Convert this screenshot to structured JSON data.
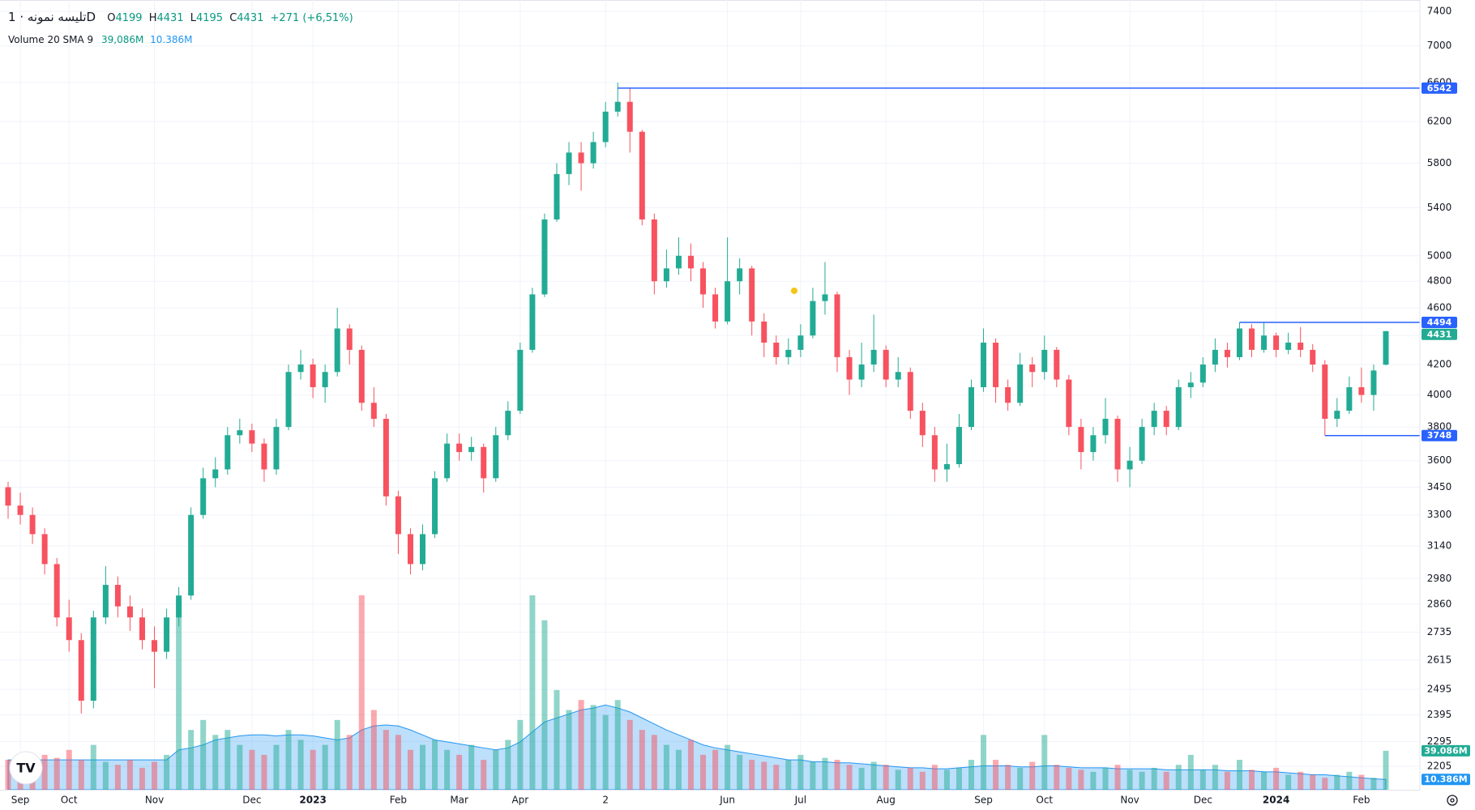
{
  "header": {
    "symbol": "تلیسه نمونه · 1D",
    "ohlc_letters": [
      "O",
      "H",
      "L",
      "C"
    ],
    "change": "+271 (+6,51%)",
    "indicator": "Volume 20 SMA 9",
    "indicator_values": [
      "39,086M",
      "10.386M"
    ]
  },
  "chart_data": {
    "type": "candlestick",
    "log_scale": true,
    "grid": true,
    "up_color": "#22ab94",
    "down_color": "#f7525f",
    "sma_color": "#2196f3",
    "level_color": "#2962ff",
    "ylim": [
      2124,
      7535
    ],
    "yticks": [
      7400,
      7000,
      6600,
      6200,
      5800,
      5400,
      5000,
      4800,
      4600,
      4400,
      4200,
      4000,
      3800,
      3600,
      3450,
      3300,
      3140,
      2980,
      2860,
      2735,
      2615,
      2495,
      2395,
      2295,
      2205
    ],
    "categories": [
      null,
      "Sep",
      null,
      null,
      null,
      "Oct",
      null,
      null,
      null,
      null,
      null,
      null,
      "Nov",
      null,
      null,
      null,
      null,
      null,
      null,
      null,
      "Dec",
      null,
      null,
      null,
      null,
      "2023",
      null,
      null,
      null,
      null,
      null,
      null,
      "Feb",
      null,
      null,
      null,
      null,
      "Mar",
      null,
      null,
      null,
      null,
      "Apr",
      null,
      null,
      null,
      null,
      null,
      null,
      "2",
      null,
      null,
      null,
      null,
      null,
      null,
      null,
      null,
      null,
      "Jun",
      null,
      null,
      null,
      null,
      null,
      "Jul",
      null,
      null,
      null,
      null,
      null,
      null,
      "Aug",
      null,
      null,
      null,
      null,
      null,
      null,
      null,
      "Sep",
      null,
      null,
      null,
      null,
      "Oct",
      null,
      null,
      null,
      null,
      null,
      null,
      "Nov",
      null,
      null,
      null,
      null,
      null,
      "Dec",
      null,
      null,
      null,
      null,
      null,
      "2024",
      null,
      null,
      null,
      null,
      null,
      null,
      "Feb",
      null,
      null
    ],
    "ohlc": [
      [
        3450,
        3480,
        3280,
        3350
      ],
      [
        3350,
        3420,
        3250,
        3300
      ],
      [
        3300,
        3340,
        3150,
        3200
      ],
      [
        3200,
        3230,
        3000,
        3050
      ],
      [
        3050,
        3080,
        2760,
        2800
      ],
      [
        2800,
        2880,
        2650,
        2700
      ],
      [
        2700,
        2730,
        2400,
        2450
      ],
      [
        2450,
        2830,
        2420,
        2800
      ],
      [
        2800,
        3040,
        2770,
        2950
      ],
      [
        2950,
        2990,
        2800,
        2850
      ],
      [
        2850,
        2900,
        2740,
        2800
      ],
      [
        2800,
        2840,
        2660,
        2700
      ],
      [
        2700,
        2760,
        2500,
        2650
      ],
      [
        2650,
        2840,
        2620,
        2800
      ],
      [
        2800,
        2940,
        2760,
        2900
      ],
      [
        2900,
        3340,
        2880,
        3300
      ],
      [
        3300,
        3560,
        3280,
        3500
      ],
      [
        3500,
        3620,
        3450,
        3550
      ],
      [
        3550,
        3800,
        3520,
        3750
      ],
      [
        3750,
        3850,
        3700,
        3780
      ],
      [
        3780,
        3820,
        3650,
        3700
      ],
      [
        3700,
        3730,
        3480,
        3550
      ],
      [
        3550,
        3850,
        3520,
        3800
      ],
      [
        3800,
        4200,
        3780,
        4150
      ],
      [
        4150,
        4300,
        4100,
        4200
      ],
      [
        4200,
        4240,
        3980,
        4050
      ],
      [
        4050,
        4200,
        3950,
        4150
      ],
      [
        4150,
        4600,
        4120,
        4450
      ],
      [
        4450,
        4480,
        4200,
        4300
      ],
      [
        4300,
        4330,
        3900,
        3950
      ],
      [
        3950,
        4050,
        3800,
        3850
      ],
      [
        3850,
        3880,
        3350,
        3400
      ],
      [
        3400,
        3430,
        3100,
        3200
      ],
      [
        3200,
        3230,
        3000,
        3050
      ],
      [
        3050,
        3250,
        3020,
        3200
      ],
      [
        3200,
        3540,
        3180,
        3500
      ],
      [
        3500,
        3760,
        3480,
        3700
      ],
      [
        3700,
        3760,
        3600,
        3650
      ],
      [
        3650,
        3740,
        3600,
        3680
      ],
      [
        3680,
        3700,
        3420,
        3500
      ],
      [
        3500,
        3800,
        3480,
        3750
      ],
      [
        3750,
        3960,
        3720,
        3900
      ],
      [
        3900,
        4350,
        3880,
        4300
      ],
      [
        4300,
        4750,
        4280,
        4700
      ],
      [
        4700,
        5350,
        4680,
        5300
      ],
      [
        5300,
        5800,
        5280,
        5700
      ],
      [
        5700,
        6000,
        5600,
        5900
      ],
      [
        5900,
        6000,
        5550,
        5800
      ],
      [
        5800,
        6100,
        5750,
        6000
      ],
      [
        6000,
        6400,
        5950,
        6300
      ],
      [
        6300,
        6600,
        6250,
        6400
      ],
      [
        6400,
        6550,
        5900,
        6100
      ],
      [
        6100,
        6120,
        5250,
        5300
      ],
      [
        5300,
        5350,
        4700,
        4800
      ],
      [
        4800,
        5050,
        4750,
        4900
      ],
      [
        4900,
        5150,
        4850,
        5000
      ],
      [
        5000,
        5100,
        4800,
        4900
      ],
      [
        4900,
        4950,
        4600,
        4700
      ],
      [
        4700,
        4750,
        4450,
        4500
      ],
      [
        4500,
        5150,
        4480,
        4800
      ],
      [
        4800,
        4980,
        4700,
        4900
      ],
      [
        4900,
        4920,
        4400,
        4500
      ],
      [
        4500,
        4560,
        4250,
        4350
      ],
      [
        4350,
        4400,
        4200,
        4250
      ],
      [
        4250,
        4380,
        4200,
        4300
      ],
      [
        4300,
        4480,
        4250,
        4400
      ],
      [
        4400,
        4750,
        4380,
        4650
      ],
      [
        4650,
        4950,
        4550,
        4700
      ],
      [
        4700,
        4720,
        4150,
        4250
      ],
      [
        4250,
        4300,
        4000,
        4100
      ],
      [
        4100,
        4350,
        4050,
        4200
      ],
      [
        4200,
        4550,
        4150,
        4300
      ],
      [
        4300,
        4330,
        4050,
        4100
      ],
      [
        4100,
        4250,
        4050,
        4150
      ],
      [
        4150,
        4180,
        3850,
        3900
      ],
      [
        3900,
        3950,
        3680,
        3750
      ],
      [
        3750,
        3800,
        3480,
        3550
      ],
      [
        3550,
        3700,
        3480,
        3580
      ],
      [
        3580,
        3880,
        3560,
        3800
      ],
      [
        3800,
        4100,
        3780,
        4050
      ],
      [
        4050,
        4450,
        4020,
        4350
      ],
      [
        4350,
        4380,
        3950,
        4050
      ],
      [
        4050,
        4100,
        3900,
        3950
      ],
      [
        3950,
        4280,
        3930,
        4200
      ],
      [
        4200,
        4250,
        4050,
        4150
      ],
      [
        4150,
        4400,
        4100,
        4300
      ],
      [
        4300,
        4320,
        4050,
        4100
      ],
      [
        4100,
        4130,
        3750,
        3800
      ],
      [
        3800,
        3850,
        3550,
        3650
      ],
      [
        3650,
        3800,
        3600,
        3750
      ],
      [
        3750,
        3980,
        3700,
        3850
      ],
      [
        3850,
        3870,
        3480,
        3550
      ],
      [
        3550,
        3680,
        3450,
        3600
      ],
      [
        3600,
        3850,
        3580,
        3800
      ],
      [
        3800,
        3950,
        3750,
        3900
      ],
      [
        3900,
        3930,
        3750,
        3800
      ],
      [
        3800,
        4100,
        3780,
        4050
      ],
      [
        4050,
        4150,
        3980,
        4080
      ],
      [
        4080,
        4250,
        4050,
        4200
      ],
      [
        4200,
        4380,
        4150,
        4300
      ],
      [
        4300,
        4350,
        4180,
        4250
      ],
      [
        4250,
        4494,
        4230,
        4450
      ],
      [
        4450,
        4480,
        4250,
        4300
      ],
      [
        4300,
        4494,
        4280,
        4400
      ],
      [
        4400,
        4420,
        4250,
        4300
      ],
      [
        4300,
        4420,
        4270,
        4350
      ],
      [
        4350,
        4460,
        4250,
        4300
      ],
      [
        4300,
        4340,
        4150,
        4200
      ],
      [
        4200,
        4230,
        3748,
        3850
      ],
      [
        3850,
        3980,
        3800,
        3900
      ],
      [
        3900,
        4120,
        3880,
        4050
      ],
      [
        4050,
        4180,
        3950,
        4000
      ],
      [
        4000,
        4200,
        3900,
        4160
      ],
      [
        4199,
        4431,
        4195,
        4431
      ]
    ],
    "volume": [
      30,
      25,
      28,
      35,
      32,
      40,
      30,
      45,
      28,
      25,
      30,
      22,
      28,
      35,
      190,
      60,
      70,
      55,
      60,
      45,
      40,
      35,
      45,
      60,
      50,
      40,
      45,
      70,
      55,
      195,
      80,
      60,
      55,
      40,
      45,
      50,
      40,
      35,
      45,
      30,
      40,
      50,
      70,
      195,
      170,
      100,
      80,
      90,
      85,
      75,
      90,
      70,
      60,
      55,
      45,
      40,
      50,
      35,
      40,
      45,
      35,
      30,
      28,
      25,
      30,
      35,
      28,
      32,
      30,
      25,
      22,
      28,
      25,
      20,
      22,
      18,
      25,
      20,
      22,
      30,
      55,
      30,
      25,
      22,
      28,
      55,
      25,
      22,
      20,
      18,
      22,
      25,
      20,
      18,
      22,
      18,
      25,
      35,
      20,
      25,
      18,
      30,
      20,
      18,
      22,
      15,
      18,
      15,
      12,
      15,
      18,
      15,
      12,
      39.086
    ],
    "volume_sma": [
      30,
      30,
      30,
      30,
      30,
      30,
      30,
      30,
      30,
      30,
      30,
      30,
      30,
      30,
      40,
      42,
      45,
      50,
      52,
      54,
      55,
      55,
      54,
      55,
      55,
      54,
      52,
      50,
      52,
      60,
      64,
      65,
      64,
      60,
      55,
      50,
      48,
      46,
      44,
      42,
      40,
      42,
      48,
      58,
      68,
      72,
      76,
      80,
      82,
      85,
      82,
      78,
      72,
      66,
      60,
      55,
      50,
      45,
      42,
      40,
      38,
      36,
      34,
      32,
      30,
      30,
      28,
      28,
      27,
      27,
      26,
      25,
      24,
      23,
      22,
      22,
      21,
      21,
      22,
      23,
      24,
      24,
      24,
      23,
      23,
      24,
      24,
      23,
      22,
      22,
      22,
      21,
      21,
      21,
      21,
      20,
      20,
      20,
      20,
      20,
      19,
      19,
      19,
      18,
      18,
      17,
      16,
      15,
      15,
      14,
      13,
      12,
      11,
      10.386
    ],
    "volume_tags": [
      "39.086M",
      "10.386M"
    ],
    "levels": [
      {
        "value": 6542,
        "start": 50
      },
      {
        "value": 4494,
        "start": 101
      },
      {
        "value": 3748,
        "start": 108
      }
    ]
  }
}
